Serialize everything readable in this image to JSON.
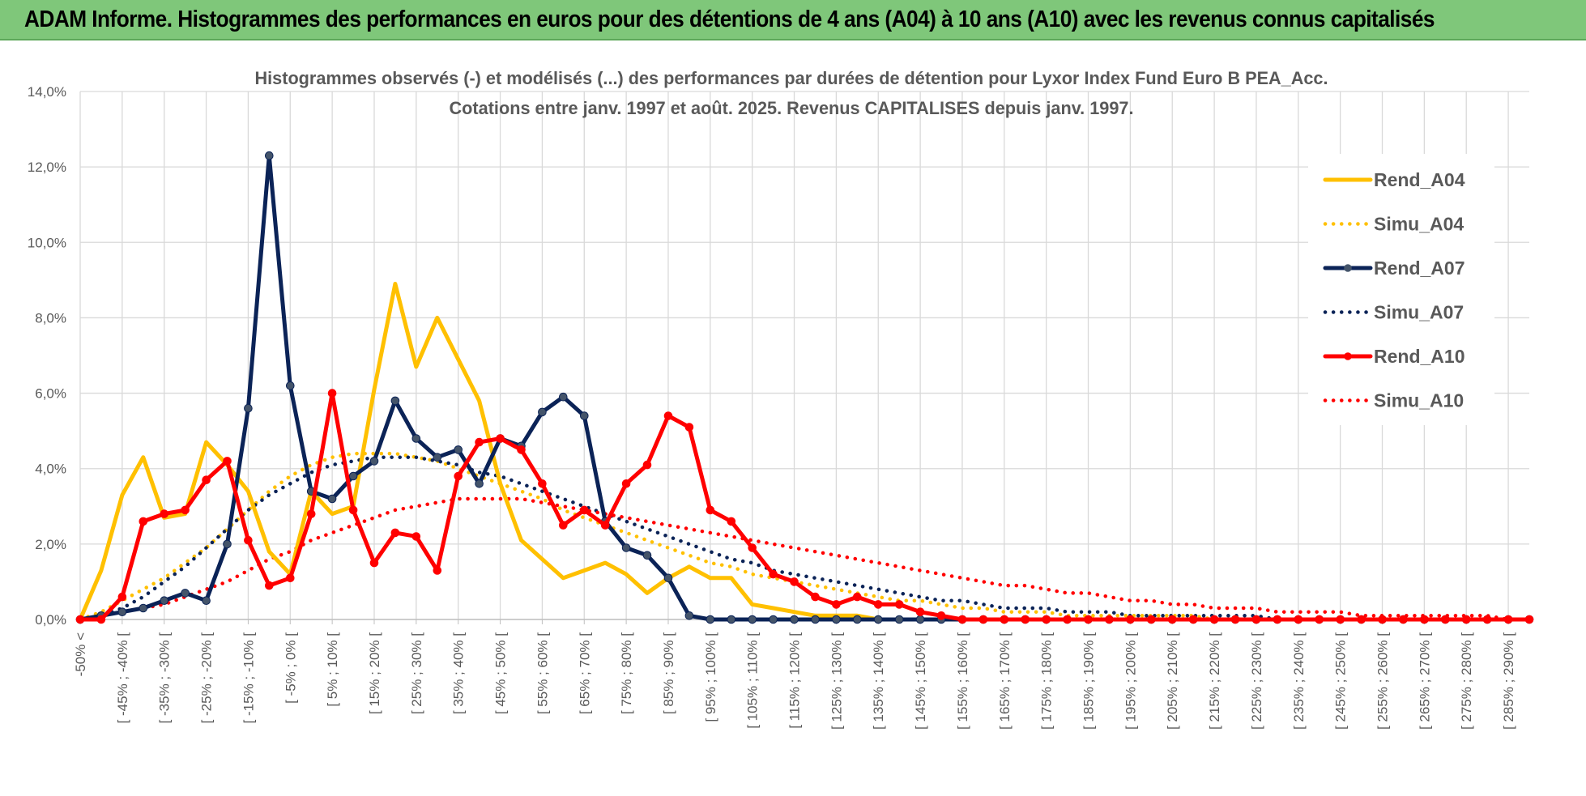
{
  "banner": {
    "text": "ADAM Informe. Histogrammes des performances en euros pour des détentions de 4 ans (A04) à 10 ans (A10) avec les revenus connus capitalisés"
  },
  "colors": {
    "banner_bg": "#7fc77a",
    "A04": "#ffc000",
    "A07": "#0b2357",
    "A10": "#ff0000",
    "grid": "#d9d9d9",
    "axis_text": "#595959"
  },
  "chart_data": {
    "type": "line",
    "title": "Histogrammes observés (-) et modélisés (...) des performances par durées de détention pour Lyxor  Index Fund Euro B PEA_Acc.",
    "subtitle": "Cotations entre janv. 1997 et août. 2025. Revenus CAPITALISES depuis janv. 1997.",
    "ylim": [
      0,
      0.14
    ],
    "y_ticks": [
      "0,0%",
      "2,0%",
      "4,0%",
      "6,0%",
      "8,0%",
      "10,0%",
      "12,0%",
      "14,0%"
    ],
    "x_tick_labels": [
      "-50% <",
      "[ -45% ; -40% [",
      "[ -35% ; -30% [",
      "[ -25% ; -20% [",
      "[ -15% ; -10% [",
      "[ -5% ; 0% [",
      "[ 5% ; 10% [",
      "[ 15% ; 20% [",
      "[ 25% ; 30% [",
      "[ 35% ; 40% [",
      "[ 45% ; 50% [",
      "[ 55% ; 60% [",
      "[ 65% ; 70% [",
      "[ 75% ; 80% [",
      "[ 85% ; 90% [",
      "[ 95% ; 100% [",
      "[ 105% ; 110% [",
      "[ 115% ; 120% [",
      "[ 125% ; 130% [",
      "[ 135% ; 140% [",
      "[ 145% ; 150% [",
      "[ 155% ; 160% [",
      "[ 165% ; 170% [",
      "[ 175% ; 180% [",
      "[ 185% ; 190% [",
      "[ 195% ; 200% [",
      "[ 205% ; 210% [",
      "[ 215% ; 220% [",
      "[ 225% ; 230% [",
      "[ 235% ; 240% [",
      "[ 245% ; 250% [",
      "[ 255% ; 260% [",
      "[ 265% ; 270% [",
      "[ 275% ; 280% [",
      "[ 285% ; 290% ["
    ],
    "grid": true,
    "legend_position": "right",
    "series": [
      {
        "name": "Rend_A04",
        "style": "solid",
        "markers": false,
        "color": "#ffc000",
        "values": [
          0.0,
          0.013,
          0.033,
          0.043,
          0.027,
          0.028,
          0.047,
          0.041,
          0.034,
          0.018,
          0.012,
          0.034,
          0.028,
          0.03,
          0.061,
          0.089,
          0.067,
          0.08,
          0.069,
          0.058,
          0.036,
          0.021,
          0.016,
          0.011,
          0.013,
          0.015,
          0.012,
          0.007,
          0.011,
          0.014,
          0.011,
          0.011,
          0.004,
          0.003,
          0.002,
          0.001,
          0.001,
          0.001,
          0,
          0,
          0,
          0,
          0,
          0,
          0,
          0,
          0,
          0,
          0,
          0,
          0,
          0,
          0,
          0,
          0,
          0,
          0,
          0,
          0,
          0,
          0,
          0,
          0,
          0,
          0,
          0,
          0,
          0,
          0,
          0
        ]
      },
      {
        "name": "Simu_A04",
        "style": "dotted",
        "color": "#ffc000",
        "values": [
          0.0,
          0.002,
          0.005,
          0.008,
          0.011,
          0.015,
          0.019,
          0.024,
          0.029,
          0.034,
          0.038,
          0.041,
          0.043,
          0.044,
          0.044,
          0.044,
          0.043,
          0.042,
          0.04,
          0.038,
          0.036,
          0.034,
          0.032,
          0.029,
          0.027,
          0.025,
          0.023,
          0.021,
          0.019,
          0.017,
          0.015,
          0.014,
          0.012,
          0.011,
          0.01,
          0.009,
          0.008,
          0.007,
          0.006,
          0.005,
          0.005,
          0.004,
          0.003,
          0.003,
          0.002,
          0.002,
          0.002,
          0.001,
          0.001,
          0.001,
          0.001,
          0.001,
          0.001,
          0.001,
          0.0,
          0.0,
          0.0,
          0.0,
          0.0,
          0.0,
          0.0,
          0.0,
          0.0,
          0.0,
          0.0,
          0.0,
          0.0,
          0.0,
          0.0,
          0.0
        ]
      },
      {
        "name": "Rend_A07",
        "style": "solid",
        "markers": true,
        "color": "#0b2357",
        "values": [
          0.0,
          0.001,
          0.002,
          0.003,
          0.005,
          0.007,
          0.005,
          0.02,
          0.056,
          0.123,
          0.062,
          0.034,
          0.032,
          0.038,
          0.042,
          0.058,
          0.048,
          0.043,
          0.045,
          0.036,
          0.048,
          0.046,
          0.055,
          0.059,
          0.054,
          0.026,
          0.019,
          0.017,
          0.011,
          0.001,
          0.0,
          0.0,
          0.0,
          0.0,
          0.0,
          0.0,
          0.0,
          0.0,
          0.0,
          0.0,
          0.0,
          0.0,
          0.0,
          0.0,
          0.0,
          0.0,
          0.0,
          0.0,
          0.0,
          0.0,
          0.0,
          0.0,
          0.0,
          0.0,
          0.0,
          0.0,
          0.0,
          0.0,
          0.0,
          0.0,
          0.0,
          0.0,
          0.0,
          0.0,
          0.0,
          0.0,
          0.0,
          0.0,
          0.0,
          0.0
        ]
      },
      {
        "name": "Simu_A07",
        "style": "dotted",
        "color": "#0b2357",
        "values": [
          0.0,
          0.001,
          0.003,
          0.006,
          0.01,
          0.014,
          0.019,
          0.024,
          0.029,
          0.033,
          0.036,
          0.039,
          0.041,
          0.042,
          0.043,
          0.043,
          0.043,
          0.042,
          0.041,
          0.039,
          0.038,
          0.036,
          0.034,
          0.032,
          0.03,
          0.028,
          0.026,
          0.024,
          0.022,
          0.02,
          0.018,
          0.016,
          0.015,
          0.013,
          0.012,
          0.011,
          0.01,
          0.009,
          0.008,
          0.007,
          0.006,
          0.005,
          0.005,
          0.004,
          0.003,
          0.003,
          0.003,
          0.002,
          0.002,
          0.002,
          0.001,
          0.001,
          0.001,
          0.001,
          0.001,
          0.001,
          0.001,
          0.0,
          0.0,
          0.0,
          0.0,
          0.0,
          0.0,
          0.0,
          0.0,
          0.0,
          0.0,
          0.0,
          0.0,
          0.0
        ]
      },
      {
        "name": "Rend_A10",
        "style": "solid",
        "markers": true,
        "color": "#ff0000",
        "values": [
          0.0,
          0.0,
          0.006,
          0.026,
          0.028,
          0.029,
          0.037,
          0.042,
          0.021,
          0.009,
          0.011,
          0.028,
          0.06,
          0.029,
          0.015,
          0.023,
          0.022,
          0.013,
          0.038,
          0.047,
          0.048,
          0.045,
          0.036,
          0.025,
          0.029,
          0.025,
          0.036,
          0.041,
          0.054,
          0.051,
          0.029,
          0.026,
          0.019,
          0.012,
          0.01,
          0.006,
          0.004,
          0.006,
          0.004,
          0.004,
          0.002,
          0.001,
          0.0,
          0.0,
          0.0,
          0.0,
          0.0,
          0.0,
          0.0,
          0.0,
          0.0,
          0.0,
          0.0,
          0.0,
          0.0,
          0.0,
          0.0,
          0.0,
          0.0,
          0.0,
          0.0,
          0.0,
          0.0,
          0.0,
          0.0,
          0.0,
          0.0,
          0.0,
          0.0,
          0.0
        ]
      },
      {
        "name": "Simu_A10",
        "style": "dotted",
        "color": "#ff0000",
        "values": [
          0.0,
          0.001,
          0.002,
          0.003,
          0.004,
          0.006,
          0.008,
          0.01,
          0.013,
          0.016,
          0.018,
          0.021,
          0.023,
          0.025,
          0.027,
          0.029,
          0.03,
          0.031,
          0.032,
          0.032,
          0.032,
          0.032,
          0.031,
          0.03,
          0.029,
          0.028,
          0.027,
          0.026,
          0.025,
          0.024,
          0.023,
          0.022,
          0.021,
          0.02,
          0.019,
          0.018,
          0.017,
          0.016,
          0.015,
          0.014,
          0.013,
          0.012,
          0.011,
          0.01,
          0.009,
          0.009,
          0.008,
          0.007,
          0.007,
          0.006,
          0.005,
          0.005,
          0.004,
          0.004,
          0.003,
          0.003,
          0.003,
          0.002,
          0.002,
          0.002,
          0.002,
          0.001,
          0.001,
          0.001,
          0.001,
          0.001,
          0.001,
          0.001,
          0.0,
          0.0
        ]
      }
    ]
  }
}
